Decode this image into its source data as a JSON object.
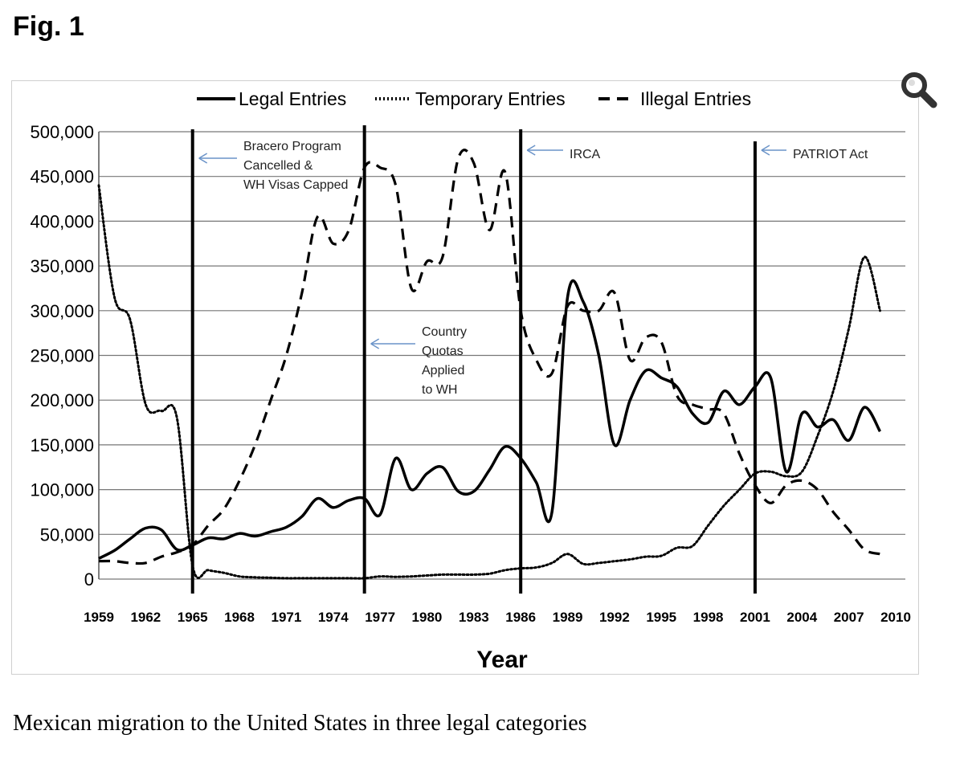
{
  "figure": {
    "label": "Fig. 1",
    "caption": "Mexican migration to the United States in three legal categories"
  },
  "chart_data": {
    "type": "line",
    "title": "",
    "xlabel": "Year",
    "ylabel": "",
    "xlim": [
      1959,
      2010
    ],
    "ylim": [
      0,
      500000
    ],
    "grid": true,
    "legend_position": "top-center",
    "x_ticks": [
      1959,
      1962,
      1965,
      1968,
      1971,
      1974,
      1977,
      1980,
      1983,
      1986,
      1989,
      1992,
      1995,
      1998,
      2001,
      2004,
      2007,
      2010
    ],
    "y_ticks": [
      0,
      50000,
      100000,
      150000,
      200000,
      250000,
      300000,
      350000,
      400000,
      450000,
      500000
    ],
    "y_tick_labels": [
      "0",
      "50,000",
      "100,000",
      "150,000",
      "200,000",
      "250,000",
      "300,000",
      "350,000",
      "400,000",
      "450,000",
      "500,000"
    ],
    "series": [
      {
        "name": "Legal Entries",
        "style": "solid",
        "x": [
          1959,
          1960,
          1961,
          1962,
          1963,
          1964,
          1965,
          1966,
          1967,
          1968,
          1969,
          1970,
          1971,
          1972,
          1973,
          1974,
          1975,
          1976,
          1977,
          1978,
          1979,
          1980,
          1981,
          1982,
          1983,
          1984,
          1985,
          1986,
          1987,
          1988,
          1989,
          1990,
          1991,
          1992,
          1993,
          1994,
          1995,
          1996,
          1997,
          1998,
          1999,
          2000,
          2001,
          2002,
          2003,
          2004,
          2005,
          2006,
          2007,
          2008,
          2009
        ],
        "values": [
          23000,
          32000,
          45000,
          57000,
          55000,
          33000,
          38000,
          46000,
          45000,
          51000,
          48000,
          53000,
          58000,
          70000,
          90000,
          80000,
          88000,
          90000,
          72000,
          135000,
          100000,
          118000,
          125000,
          98000,
          98000,
          122000,
          148000,
          135000,
          108000,
          75000,
          315000,
          310000,
          250000,
          150000,
          200000,
          233000,
          225000,
          215000,
          185000,
          175000,
          210000,
          195000,
          215000,
          225000,
          120000,
          185000,
          170000,
          178000,
          155000,
          192000,
          165000
        ]
      },
      {
        "name": "Temporary Entries",
        "style": "dotted",
        "x": [
          1959,
          1960,
          1961,
          1962,
          1963,
          1964,
          1965,
          1966,
          1967,
          1968,
          1969,
          1970,
          1971,
          1972,
          1973,
          1974,
          1975,
          1976,
          1977,
          1978,
          1979,
          1980,
          1981,
          1982,
          1983,
          1984,
          1985,
          1986,
          1987,
          1988,
          1989,
          1990,
          1991,
          1992,
          1993,
          1994,
          1995,
          1996,
          1997,
          1998,
          1999,
          2000,
          2001,
          2002,
          2003,
          2004,
          2005,
          2006,
          2007,
          2008,
          2009
        ],
        "values": [
          440000,
          315000,
          290000,
          195000,
          188000,
          180000,
          15000,
          10000,
          7000,
          3000,
          2000,
          1500,
          1000,
          1000,
          1000,
          1000,
          1000,
          1000,
          3000,
          2500,
          3000,
          4000,
          5000,
          5000,
          5000,
          6000,
          10000,
          12000,
          13000,
          18000,
          28000,
          17000,
          18000,
          20000,
          22000,
          25000,
          26000,
          35000,
          37000,
          60000,
          82000,
          100000,
          118000,
          120000,
          115000,
          120000,
          160000,
          210000,
          280000,
          360000,
          300000
        ]
      },
      {
        "name": "Illegal Entries",
        "style": "dashed",
        "x": [
          1959,
          1960,
          1961,
          1962,
          1963,
          1964,
          1965,
          1966,
          1967,
          1968,
          1969,
          1970,
          1971,
          1972,
          1973,
          1974,
          1975,
          1976,
          1977,
          1978,
          1979,
          1980,
          1981,
          1982,
          1983,
          1984,
          1985,
          1986,
          1987,
          1988,
          1989,
          1990,
          1991,
          1992,
          1993,
          1994,
          1995,
          1996,
          1997,
          1998,
          1999,
          2000,
          2001,
          2002,
          2003,
          2004,
          2005,
          2006,
          2007,
          2008,
          2009
        ],
        "values": [
          20000,
          20000,
          18000,
          18000,
          25000,
          30000,
          38000,
          60000,
          78000,
          110000,
          150000,
          200000,
          250000,
          320000,
          405000,
          375000,
          390000,
          460000,
          460000,
          440000,
          325000,
          355000,
          360000,
          470000,
          465000,
          390000,
          455000,
          300000,
          245000,
          230000,
          305000,
          300000,
          300000,
          320000,
          245000,
          270000,
          265000,
          205000,
          195000,
          190000,
          185000,
          140000,
          105000,
          85000,
          105000,
          110000,
          100000,
          75000,
          55000,
          33000,
          28000
        ]
      }
    ],
    "annotations": [
      {
        "x": 1965,
        "lines": [
          "Bracero Program",
          "Cancelled &",
          "WH Visas Capped"
        ]
      },
      {
        "x": 1976,
        "lines": [
          "Country",
          "Quotas",
          "Applied",
          "to WH"
        ]
      },
      {
        "x": 1986,
        "lines": [
          "IRCA"
        ]
      },
      {
        "x": 2001,
        "lines": [
          "PATRIOT Act"
        ]
      }
    ]
  },
  "icons": {
    "zoom": "magnifier-icon"
  }
}
